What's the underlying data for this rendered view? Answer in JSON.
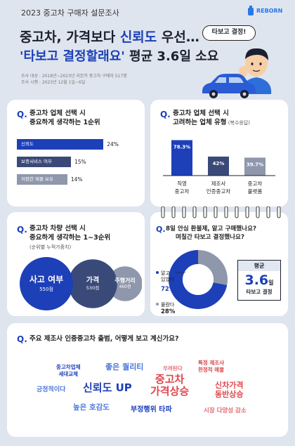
{
  "header": {
    "survey_label": "2023 중고차 구매자 설문조사",
    "brand": "REBORN",
    "title_part1": "중고차, 가격보다 ",
    "title_highlight": "신뢰도",
    "title_part2": " 우선…",
    "subtitle_highlight": "'타보고 결정할래요'",
    "subtitle_rest": " 평균 3.6일 소요",
    "speech_bubble": "타보고 결정!",
    "meta_line1": "조사 대상 : 2018년~2023년 리본카 중고차 구매자 517명",
    "meta_line2": "조사 시행 : 2023년 12월 1일~6일"
  },
  "q1": {
    "q_mark": "Q.",
    "title_line1": "중고차 업체 선택 시",
    "title_line2": "중요하게 생각하는 1순위",
    "chart_data": {
      "type": "bar",
      "orientation": "horizontal",
      "categories": [
        "신뢰도",
        "보증서비스 여부",
        "저렴한 매물 보유"
      ],
      "values": [
        24,
        15,
        14
      ],
      "value_labels": [
        "24%",
        "15%",
        "14%"
      ],
      "colors": [
        "#1d3fb8",
        "#3a4a78",
        "#8e97ab"
      ],
      "xlim": [
        0,
        30
      ]
    }
  },
  "q2": {
    "q_mark": "Q.",
    "title_line1": "중고차 업체 선택 시",
    "title_line2": "고려하는 업체 유형",
    "title_note": " (복수응답)",
    "chart_data": {
      "type": "bar",
      "orientation": "vertical",
      "categories": [
        "직영 중고차",
        "제조사 인증중고차",
        "중고차 플랫폼"
      ],
      "category_lines": [
        [
          "직영",
          "중고차"
        ],
        [
          "제조사",
          "인증중고차"
        ],
        [
          "중고차",
          "플랫폼"
        ]
      ],
      "values": [
        78.3,
        42,
        39.7
      ],
      "value_labels": [
        "78.3%",
        "42%",
        "39.7%"
      ],
      "colors": [
        "#1d3fb8",
        "#3a4a78",
        "#8e97ab"
      ],
      "ylim": [
        0,
        90
      ]
    }
  },
  "q3": {
    "q_mark": "Q.",
    "title_line1": "중고차 차량 선택 시",
    "title_line2": "중요하게 생각하는 1~3순위",
    "note": "(순위별 누적가중치)",
    "chart_data": {
      "type": "bubble",
      "categories": [
        "사고 여부",
        "가격",
        "주행거리"
      ],
      "values": [
        550,
        530,
        460
      ],
      "value_labels": [
        "550점",
        "530점",
        "460점"
      ],
      "colors": [
        "#1d3fb8",
        "#3a4a78",
        "#8e97ab"
      ]
    }
  },
  "q4": {
    "q_mark": "Q.",
    "title_line1": "8일 안심 환불제, 알고 구매했나요?",
    "title_line2": "며칠간 타보고 결정했나요?",
    "chart_data": {
      "type": "pie",
      "variant": "donut",
      "categories": [
        "알고 있었다",
        "몰랐다"
      ],
      "category_lines": [
        [
          "알고",
          "있었다"
        ],
        [
          "몰랐다"
        ]
      ],
      "values": [
        72,
        28
      ],
      "value_labels": [
        "72%",
        "28%"
      ],
      "colors": [
        "#1d3fb8",
        "#8e97ab"
      ]
    },
    "avg_title": "평균",
    "avg_value": "3.6",
    "avg_unit": "일",
    "avg_caption": "타보고 결정"
  },
  "q5": {
    "q_mark": "Q.",
    "title": "주요 제조사 인증중고차 출범, 어떻게 보고 계신가요?",
    "words": [
      {
        "lines": [
          "중고차업체",
          "세대교체"
        ],
        "color": "#1d3fb8"
      },
      {
        "lines": [
          "좋은 퀄리티"
        ],
        "color": "#4a78d8"
      },
      {
        "lines": [
          "우려된다"
        ],
        "color": "#e06a70"
      },
      {
        "lines": [
          "특정 제조사",
          "한정적 매물"
        ],
        "color": "#d4484e"
      },
      {
        "lines": [
          "긍정적이다"
        ],
        "color": "#4a78d8"
      },
      {
        "lines": [
          "신뢰도 UP"
        ],
        "color": "#1d3fb8"
      },
      {
        "lines": [
          "중고차",
          "가격상승"
        ],
        "color": "#e0484e"
      },
      {
        "lines": [
          "신차가격",
          "동반상승"
        ],
        "color": "#e0484e"
      },
      {
        "lines": [
          "높은 호감도"
        ],
        "color": "#4a78d8"
      },
      {
        "lines": [
          "부정행위 타파"
        ],
        "color": "#1d3fb8"
      },
      {
        "lines": [
          "시장 다양성 감소"
        ],
        "color": "#e06a70"
      }
    ]
  }
}
